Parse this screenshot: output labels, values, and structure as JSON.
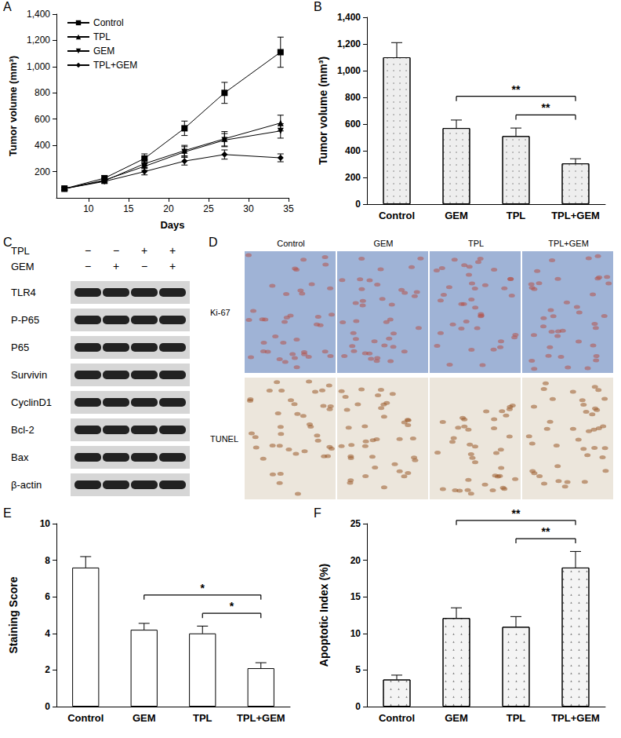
{
  "chart_data": [
    {
      "panel": "A",
      "type": "line",
      "x_label": "Days",
      "y_label": "Tumor volume (mm³)",
      "x": [
        7,
        12,
        17,
        22,
        27,
        34
      ],
      "series": [
        {
          "name": "Control",
          "color": "#000000",
          "marker": "square",
          "values": [
            70,
            150,
            300,
            530,
            800,
            1110
          ],
          "errors": [
            10,
            20,
            35,
            55,
            80,
            115
          ]
        },
        {
          "name": "TPL",
          "color": "#000000",
          "marker": "triangle",
          "values": [
            70,
            130,
            260,
            360,
            450,
            570
          ],
          "errors": [
            10,
            15,
            30,
            40,
            55,
            60
          ]
        },
        {
          "name": "GEM",
          "color": "#000000",
          "marker": "triangle-down",
          "values": [
            70,
            135,
            240,
            350,
            440,
            510
          ],
          "errors": [
            10,
            15,
            30,
            40,
            50,
            55
          ]
        },
        {
          "name": "TPL+GEM",
          "color": "#000000",
          "marker": "diamond",
          "values": [
            70,
            125,
            200,
            280,
            330,
            305
          ],
          "errors": [
            10,
            15,
            25,
            30,
            35,
            30
          ]
        }
      ],
      "xlim": [
        6,
        35
      ],
      "xticks": [
        10,
        15,
        20,
        25,
        30,
        35
      ],
      "ylim": [
        0,
        1400
      ],
      "yticks": [
        200,
        400,
        600,
        800,
        1000,
        1200,
        1400
      ],
      "legend": "upper left"
    },
    {
      "panel": "B",
      "type": "bar",
      "y_label": "Tumor volume (mm³)",
      "categories": [
        "Control",
        "GEM",
        "TPL",
        "TPL+GEM"
      ],
      "values": [
        1100,
        570,
        510,
        305
      ],
      "errors": [
        110,
        60,
        60,
        35
      ],
      "color": "#eeeeee",
      "ylim": [
        0,
        1400
      ],
      "yticks": [
        0,
        200,
        400,
        600,
        800,
        1000,
        1200,
        1400
      ],
      "annotations": [
        {
          "from": "GEM",
          "to": "TPL+GEM",
          "label": "**"
        },
        {
          "from": "TPL",
          "to": "TPL+GEM",
          "label": "**"
        }
      ]
    },
    {
      "panel": "E",
      "type": "bar",
      "y_label": "Staining Score",
      "categories": [
        "Control",
        "GEM",
        "TPL",
        "TPL+GEM"
      ],
      "values": [
        7.6,
        4.2,
        4.0,
        2.1
      ],
      "errors": [
        0.6,
        0.35,
        0.4,
        0.3
      ],
      "color": "#ffffff",
      "ylim": [
        0,
        10
      ],
      "yticks": [
        0,
        2,
        4,
        6,
        8,
        10
      ],
      "annotations": [
        {
          "from": "GEM",
          "to": "TPL+GEM",
          "label": "*"
        },
        {
          "from": "TPL",
          "to": "TPL+GEM",
          "label": "*"
        }
      ]
    },
    {
      "panel": "F",
      "type": "bar",
      "y_label": "Apoptotic Index (%)",
      "categories": [
        "Control",
        "GEM",
        "TPL",
        "TPL+GEM"
      ],
      "values": [
        3.7,
        12.1,
        10.9,
        19.0
      ],
      "errors": [
        0.6,
        1.4,
        1.4,
        2.2
      ],
      "color": "#f4f4f4",
      "ylim": [
        0,
        25
      ],
      "yticks": [
        0,
        5,
        10,
        15,
        20,
        25
      ],
      "annotations": [
        {
          "from": "GEM",
          "to": "TPL+GEM",
          "label": "**"
        },
        {
          "from": "TPL",
          "to": "TPL+GEM",
          "label": "**"
        }
      ]
    }
  ],
  "blot": {
    "panel": "C",
    "treatments": [
      {
        "label": "TPL",
        "signs": [
          "−",
          "−",
          "+",
          "+"
        ]
      },
      {
        "label": "GEM",
        "signs": [
          "−",
          "+",
          "−",
          "+"
        ]
      }
    ],
    "proteins": [
      "TLR4",
      "P-P65",
      "P65",
      "Survivin",
      "CyclinD1",
      "Bcl-2",
      "Bax",
      "β-actin"
    ]
  },
  "ihc": {
    "panel": "D",
    "columns": [
      "Control",
      "GEM",
      "TPL",
      "TPL+GEM"
    ],
    "rows": [
      "Ki-67",
      "TUNEL"
    ]
  }
}
